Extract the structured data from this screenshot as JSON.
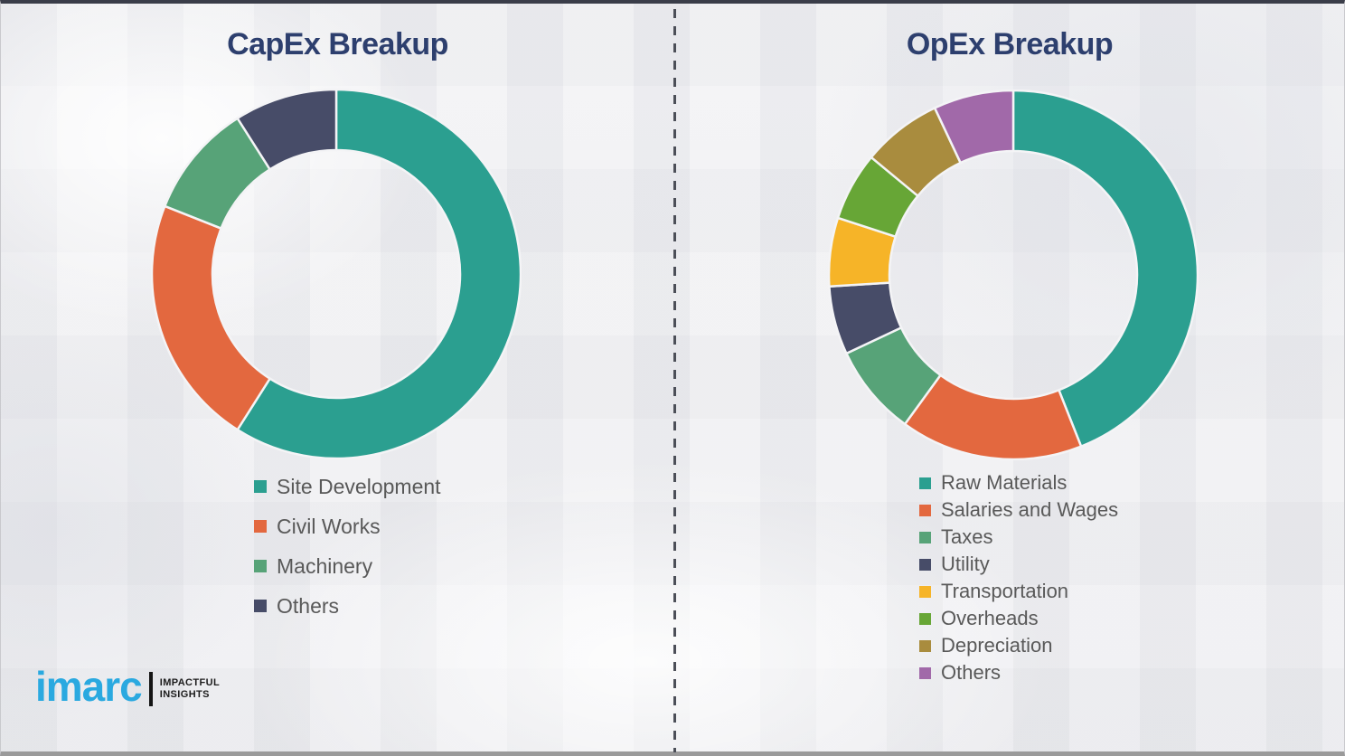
{
  "chart_data": [
    {
      "type": "pie",
      "donut": true,
      "title": "CapEx Breakup",
      "labels": [
        "Site Development",
        "Civil Works",
        "Machinery",
        "Others"
      ],
      "values": [
        59,
        22,
        10,
        9
      ],
      "colors": [
        "#2b9f90",
        "#e3683f",
        "#57a378",
        "#474c68"
      ],
      "legend_position": "below",
      "start_angle_deg": 0,
      "direction": "clockwise",
      "hole_ratio": 0.67
    },
    {
      "type": "pie",
      "donut": true,
      "title": "OpEx Breakup",
      "labels": [
        "Raw Materials",
        "Salaries and Wages",
        "Taxes",
        "Utility",
        "Transportation",
        "Overheads",
        "Depreciation",
        "Others"
      ],
      "values": [
        44,
        16,
        8,
        6,
        6,
        6,
        7,
        7
      ],
      "colors": [
        "#2b9f90",
        "#e3683f",
        "#57a378",
        "#474c68",
        "#f6b428",
        "#67a636",
        "#a98c3e",
        "#a169a9"
      ],
      "legend_position": "below",
      "start_angle_deg": 0,
      "direction": "clockwise",
      "hole_ratio": 0.67
    }
  ],
  "styles": {
    "title_color": "#2d3f6e",
    "legend_text_color": "#595959",
    "divider_color": "#4c4f58",
    "segment_gap_color": "#f4f4f6"
  },
  "logo": {
    "brand": "imarc",
    "tagline_line1": "IMPACTFUL",
    "tagline_line2": "INSIGHTS",
    "brand_color": "#2aa9e0"
  }
}
